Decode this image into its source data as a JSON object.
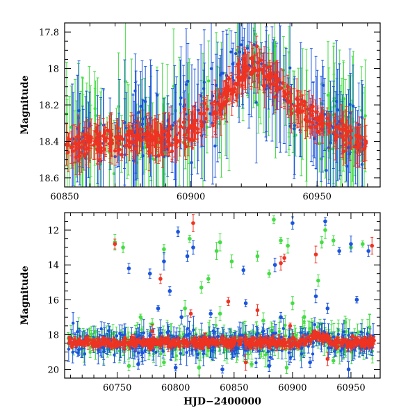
{
  "chart_data": [
    {
      "type": "scatter",
      "panel": "top",
      "title": "",
      "xlabel": "",
      "ylabel": "Magnitude",
      "xlim": [
        60850,
        60975
      ],
      "ylim": [
        18.65,
        17.75
      ],
      "y_inverted": true,
      "xticks": [
        60850,
        60900,
        60950
      ],
      "xtick_labels": [
        "60850",
        "60900",
        "60950"
      ],
      "yticks": [
        17.8,
        18,
        18.2,
        18.4,
        18.6
      ],
      "ytick_labels": [
        "17.8",
        "18",
        "18.2",
        "18.4",
        "18.6"
      ],
      "error_bars": true,
      "series": [
        {
          "name": "green",
          "color": "#44dd44",
          "trend": [
            [
              60850,
              18.4
            ],
            [
              60870,
              18.38
            ],
            [
              60890,
              18.36
            ],
            [
              60905,
              18.25
            ],
            [
              60915,
              18.12
            ],
            [
              60922,
              17.95
            ],
            [
              60928,
              18.0
            ],
            [
              60940,
              18.2
            ],
            [
              60955,
              18.32
            ],
            [
              60970,
              18.4
            ]
          ],
          "errors": [
            0.08,
            0.4
          ],
          "n_points": 160
        },
        {
          "name": "blue",
          "color": "#1a55dd",
          "trend": [
            [
              60850,
              18.4
            ],
            [
              60870,
              18.38
            ],
            [
              60890,
              18.36
            ],
            [
              60905,
              18.25
            ],
            [
              60915,
              18.12
            ],
            [
              60922,
              17.95
            ],
            [
              60928,
              18.0
            ],
            [
              60940,
              18.2
            ],
            [
              60955,
              18.32
            ],
            [
              60970,
              18.4
            ]
          ],
          "errors": [
            0.06,
            0.35
          ],
          "n_points": 180
        },
        {
          "name": "red",
          "color": "#ee3322",
          "trend": [
            [
              60850,
              18.42
            ],
            [
              60870,
              18.4
            ],
            [
              60890,
              18.38
            ],
            [
              60900,
              18.33
            ],
            [
              60910,
              18.22
            ],
            [
              60918,
              18.08
            ],
            [
              60924,
              17.97
            ],
            [
              60930,
              18.02
            ],
            [
              60940,
              18.2
            ],
            [
              60955,
              18.33
            ],
            [
              60970,
              18.42
            ]
          ],
          "errors": [
            0.02,
            0.12
          ],
          "n_points": 420
        }
      ]
    },
    {
      "type": "scatter",
      "panel": "bottom",
      "title": "",
      "xlabel": "HJD−2400000",
      "ylabel": "Magnitude",
      "xlim": [
        60705,
        60975
      ],
      "ylim": [
        20.5,
        11.0
      ],
      "y_inverted": true,
      "xticks": [
        60750,
        60800,
        60850,
        60900,
        60950
      ],
      "xtick_labels": [
        "60750",
        "60800",
        "60850",
        "60900",
        "60950"
      ],
      "yticks": [
        12,
        14,
        16,
        18,
        20
      ],
      "ytick_labels": [
        "12",
        "14",
        "16",
        "18",
        "20"
      ],
      "error_bars": true,
      "series": [
        {
          "name": "green",
          "color": "#44dd44",
          "baseline": 18.4,
          "outliers": [
            [
              60748,
              12.7
            ],
            [
              60755,
              13.0
            ],
            [
              60790,
              13.1
            ],
            [
              60812,
              12.5
            ],
            [
              60822,
              15.3
            ],
            [
              60828,
              14.8
            ],
            [
              60835,
              13.2
            ],
            [
              60838,
              12.7
            ],
            [
              60848,
              13.8
            ],
            [
              60870,
              13.5
            ],
            [
              60880,
              14.5
            ],
            [
              60884,
              11.4
            ],
            [
              60890,
              12.6
            ],
            [
              60896,
              12.9
            ],
            [
              60922,
              14.9
            ],
            [
              60925,
              12.7
            ],
            [
              60928,
              12.0
            ],
            [
              60935,
              12.6
            ],
            [
              60950,
              13.0
            ],
            [
              60960,
              12.8
            ],
            [
              60770,
              17.0
            ],
            [
              60780,
              17.4
            ],
            [
              60808,
              16.5
            ],
            [
              60838,
              16.8
            ],
            [
              60875,
              17.2
            ],
            [
              60900,
              16.2
            ],
            [
              60910,
              17.0
            ],
            [
              60945,
              17.3
            ],
            [
              60760,
              19.8
            ],
            [
              60790,
              19.6
            ],
            [
              60820,
              19.9
            ],
            [
              60865,
              19.7
            ],
            [
              60895,
              19.9
            ],
            [
              60935,
              19.5
            ]
          ]
        },
        {
          "name": "blue",
          "color": "#1a55dd",
          "baseline": 18.45,
          "outliers": [
            [
              60760,
              14.2
            ],
            [
              60778,
              14.5
            ],
            [
              60790,
              13.8
            ],
            [
              60802,
              12.1
            ],
            [
              60810,
              13.5
            ],
            [
              60815,
              13.0
            ],
            [
              60858,
              14.3
            ],
            [
              60885,
              14.0
            ],
            [
              60900,
              11.6
            ],
            [
              60928,
              11.5
            ],
            [
              60940,
              13.2
            ],
            [
              60950,
              12.8
            ],
            [
              60965,
              13.2
            ],
            [
              60785,
              16.5
            ],
            [
              60795,
              15.5
            ],
            [
              60805,
              17.0
            ],
            [
              60830,
              16.8
            ],
            [
              60860,
              16.2
            ],
            [
              60890,
              17.0
            ],
            [
              60920,
              15.8
            ],
            [
              60930,
              16.5
            ],
            [
              60955,
              16.0
            ],
            [
              60768,
              19.7
            ],
            [
              60800,
              19.9
            ],
            [
              60840,
              20.0
            ],
            [
              60880,
              19.8
            ],
            [
              60915,
              19.6
            ],
            [
              60948,
              20.0
            ]
          ]
        },
        {
          "name": "red",
          "color": "#ee3322",
          "baseline": 18.45,
          "outliers": [
            [
              60748,
              12.8
            ],
            [
              60787,
              14.8
            ],
            [
              60815,
              11.6
            ],
            [
              60845,
              16.1
            ],
            [
              60890,
              13.9
            ],
            [
              60893,
              13.6
            ],
            [
              60920,
              13.4
            ],
            [
              60968,
              12.9
            ],
            [
              60813,
              16.8
            ],
            [
              60870,
              16.6
            ],
            [
              60898,
              17.5
            ],
            [
              60780,
              17.8
            ],
            [
              60860,
              19.6
            ],
            [
              60930,
              19.4
            ]
          ]
        }
      ]
    }
  ]
}
